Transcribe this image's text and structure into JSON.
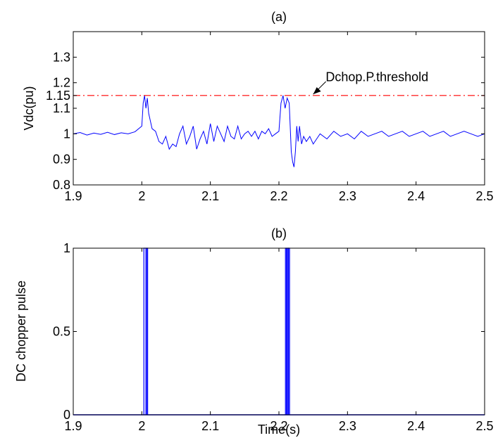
{
  "chart_data": [
    {
      "type": "line",
      "title": "(a)",
      "xlabel": "",
      "ylabel": "Vdc(pu)",
      "xlim": [
        1.9,
        2.5
      ],
      "ylim": [
        0.8,
        1.4
      ],
      "xticks": [
        1.9,
        2.0,
        2.1,
        2.2,
        2.3,
        2.4,
        2.5
      ],
      "xtick_labels": [
        "1.9",
        "2",
        "2.1",
        "2.2",
        "2.3",
        "2.4",
        "2.5"
      ],
      "yticks": [
        0.8,
        0.9,
        1.0,
        1.1,
        1.15,
        1.2,
        1.3
      ],
      "ytick_labels": [
        "0.8",
        "0.9",
        "1",
        "1.1",
        "1.15",
        "1.2",
        "1.3"
      ],
      "grid": false,
      "series": [
        {
          "color": "#0000ff",
          "style": "solid",
          "x": [
            1.9,
            1.91,
            1.92,
            1.93,
            1.94,
            1.95,
            1.96,
            1.97,
            1.98,
            1.99,
            2.0,
            2.002,
            2.004,
            2.006,
            2.008,
            2.01,
            2.015,
            2.02,
            2.025,
            2.03,
            2.035,
            2.04,
            2.045,
            2.05,
            2.055,
            2.06,
            2.065,
            2.07,
            2.075,
            2.08,
            2.085,
            2.09,
            2.095,
            2.1,
            2.105,
            2.11,
            2.115,
            2.12,
            2.125,
            2.13,
            2.135,
            2.14,
            2.145,
            2.15,
            2.155,
            2.16,
            2.165,
            2.17,
            2.175,
            2.18,
            2.185,
            2.19,
            2.195,
            2.2,
            2.203,
            2.206,
            2.209,
            2.212,
            2.215,
            2.218,
            2.22,
            2.222,
            2.224,
            2.226,
            2.228,
            2.23,
            2.233,
            2.236,
            2.24,
            2.245,
            2.25,
            2.255,
            2.26,
            2.27,
            2.28,
            2.29,
            2.3,
            2.31,
            2.32,
            2.33,
            2.34,
            2.35,
            2.36,
            2.37,
            2.38,
            2.39,
            2.4,
            2.41,
            2.42,
            2.43,
            2.44,
            2.45,
            2.46,
            2.47,
            2.48,
            2.49,
            2.5
          ],
          "y": [
            1.0,
            1.005,
            0.995,
            1.003,
            0.998,
            1.006,
            0.997,
            1.004,
            1.0,
            1.008,
            1.03,
            1.12,
            1.15,
            1.1,
            1.14,
            1.08,
            1.02,
            1.01,
            0.97,
            0.96,
            0.99,
            0.94,
            0.96,
            0.95,
            1.0,
            1.03,
            0.96,
            0.99,
            1.03,
            0.94,
            0.98,
            1.01,
            0.96,
            1.04,
            0.97,
            1.03,
            1.0,
            0.97,
            1.03,
            0.99,
            0.98,
            1.03,
            0.98,
            1.0,
            1.01,
            0.99,
            1.01,
            0.98,
            1.01,
            1.0,
            1.02,
            0.99,
            1.0,
            1.01,
            1.12,
            1.15,
            1.1,
            1.14,
            1.12,
            0.93,
            0.89,
            0.87,
            0.93,
            1.03,
            0.97,
            1.03,
            0.96,
            0.99,
            0.97,
            0.99,
            0.96,
            0.98,
            1.0,
            0.98,
            1.01,
            0.99,
            1.0,
            0.98,
            1.01,
            0.99,
            1.0,
            1.01,
            0.99,
            1.0,
            1.01,
            0.99,
            1.0,
            1.01,
            0.99,
            1.0,
            1.01,
            0.99,
            1.0,
            1.01,
            1.0,
            0.99,
            1.0
          ]
        },
        {
          "color": "#ff0000",
          "style": "dash-dot",
          "x": [
            1.9,
            2.5
          ],
          "y": [
            1.15,
            1.15
          ]
        }
      ],
      "annotations": [
        {
          "text": "Dchop.P.threshold",
          "x": 2.26,
          "y": 1.2,
          "arrow_to_x": 2.25,
          "arrow_to_y": 1.155
        }
      ]
    },
    {
      "type": "line",
      "title": "(b)",
      "xlabel": "Time(s)",
      "ylabel": "DC chopper pulse",
      "xlim": [
        1.9,
        2.5
      ],
      "ylim": [
        0,
        1
      ],
      "xticks": [
        1.9,
        2.0,
        2.1,
        2.2,
        2.3,
        2.4,
        2.5
      ],
      "xtick_labels": [
        "1.9",
        "2",
        "2.1",
        "2.2",
        "2.3",
        "2.4",
        "2.5"
      ],
      "yticks": [
        0,
        0.5,
        1
      ],
      "ytick_labels": [
        "0",
        "0.5",
        "1"
      ],
      "grid": false,
      "series": [
        {
          "color": "#0000ff",
          "style": "solid",
          "pulses": [
            [
              2.003,
              2.006
            ],
            [
              2.007,
              2.0085
            ],
            [
              2.2095,
              2.211
            ],
            [
              2.212,
              2.2135
            ],
            [
              2.214,
              2.2155
            ]
          ]
        }
      ]
    }
  ]
}
